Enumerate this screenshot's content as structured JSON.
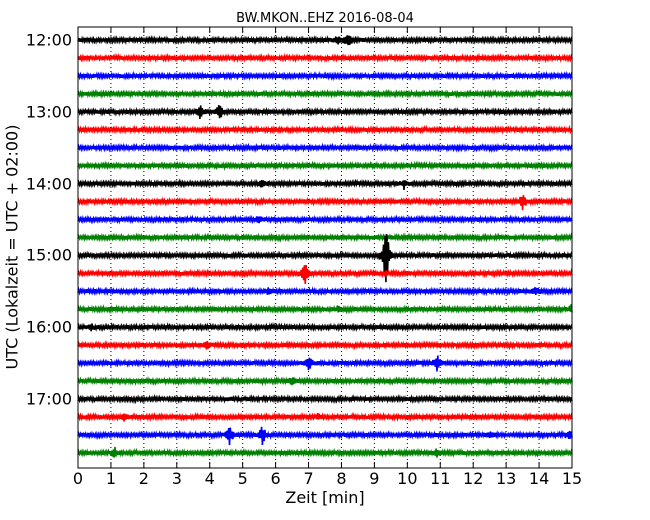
{
  "chart_data": {
    "type": "line",
    "title": "BW.MKON..EHZ 2016-08-04",
    "xlabel": "Zeit  [min]",
    "ylabel": "UTC (Lokalzeit = UTC + 02:00)",
    "xlim": [
      0,
      15
    ],
    "xticks": [
      "0",
      "1",
      "2",
      "3",
      "4",
      "5",
      "6",
      "7",
      "8",
      "9",
      "10",
      "11",
      "12",
      "13",
      "14",
      "15"
    ],
    "yticks": [
      "12:00",
      "13:00",
      "14:00",
      "15:00",
      "16:00",
      "17:00"
    ],
    "trace_interval_min": 15,
    "first_trace": "12:00",
    "trace_count": 24,
    "trace_colors": [
      "#000000",
      "#ff0000",
      "#0000ff",
      "#008000"
    ],
    "grid": "x-dotted",
    "events": [
      {
        "trace": 0,
        "minute": 8.2,
        "amplitude": 0.35
      },
      {
        "trace": 0,
        "minute": 7.9,
        "amplitude": 0.2
      },
      {
        "trace": 4,
        "minute": 3.7,
        "amplitude": 0.35
      },
      {
        "trace": 4,
        "minute": 4.3,
        "amplitude": 0.35
      },
      {
        "trace": 8,
        "minute": 5.6,
        "amplitude": 0.25
      },
      {
        "trace": 8,
        "minute": 9.9,
        "amplitude": 0.25
      },
      {
        "trace": 9,
        "minute": 13.5,
        "amplitude": 0.45
      },
      {
        "trace": 10,
        "minute": 5.5,
        "amplitude": 0.2
      },
      {
        "trace": 12,
        "minute": 9.35,
        "amplitude": 1.6
      },
      {
        "trace": 13,
        "minute": 6.9,
        "amplitude": 0.6
      },
      {
        "trace": 14,
        "minute": 5.8,
        "amplitude": 0.2
      },
      {
        "trace": 14,
        "minute": 13.9,
        "amplitude": 0.2
      },
      {
        "trace": 15,
        "minute": 15.0,
        "amplitude": 0.2
      },
      {
        "trace": 15,
        "minute": 7.9,
        "amplitude": 0.15
      },
      {
        "trace": 16,
        "minute": 0.4,
        "amplitude": 0.15
      },
      {
        "trace": 17,
        "minute": 3.9,
        "amplitude": 0.2
      },
      {
        "trace": 18,
        "minute": 7.0,
        "amplitude": 0.4
      },
      {
        "trace": 18,
        "minute": 10.9,
        "amplitude": 0.4
      },
      {
        "trace": 19,
        "minute": 6.5,
        "amplitude": 0.2
      },
      {
        "trace": 21,
        "minute": 1.4,
        "amplitude": 0.2
      },
      {
        "trace": 21,
        "minute": 7.3,
        "amplitude": 0.15
      },
      {
        "trace": 22,
        "minute": 4.6,
        "amplitude": 0.45
      },
      {
        "trace": 22,
        "minute": 5.6,
        "amplitude": 0.45
      },
      {
        "trace": 22,
        "minute": 12.5,
        "amplitude": 0.2
      },
      {
        "trace": 22,
        "minute": 14.9,
        "amplitude": 0.2
      },
      {
        "trace": 23,
        "minute": 1.1,
        "amplitude": 0.3
      },
      {
        "trace": 23,
        "minute": 10.9,
        "amplitude": 0.15
      }
    ]
  }
}
